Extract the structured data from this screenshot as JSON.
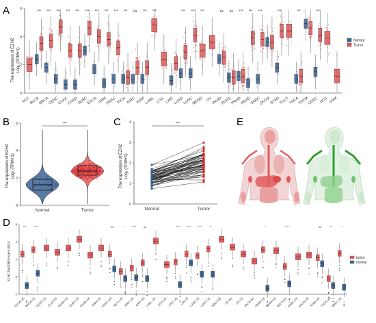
{
  "figure": {
    "panel_labels": [
      "A",
      "B",
      "C",
      "D",
      "E"
    ]
  },
  "colors": {
    "normal": "#3c6394",
    "tumor": "#e35b5b",
    "tumor_dark": "#d62728",
    "organ_tumor": "#e8a0a0",
    "organ_normal": "#8fd18f"
  },
  "chart_data": [
    {
      "panel": "A",
      "type": "box",
      "ylabel_line1": "The expression of EZH2",
      "ylabel_line2": "Log₂ (TPM+1)",
      "ylim": [
        0,
        6
      ],
      "yticks": [
        0,
        2,
        4,
        6
      ],
      "legend": {
        "title": "",
        "entries": [
          "Normal",
          "Tumor"
        ],
        "placement": "right"
      },
      "categories": [
        "ACC",
        "BLCA",
        "BRCA",
        "CESC",
        "CHOL",
        "COAD",
        "DLBC",
        "ESCA",
        "GBM",
        "HNSC",
        "KICH",
        "KIRC",
        "KIRP",
        "LAML",
        "LGG",
        "LIHC",
        "LUAD",
        "LUSC",
        "MESO",
        "OV",
        "PAAD",
        "PCPG",
        "PRAD",
        "READ",
        "SARC",
        "SKCM",
        "STAD",
        "TGCT",
        "THCA",
        "THYM",
        "UCEC",
        "UCS",
        "UVM"
      ],
      "significance": [
        "",
        "***",
        "***",
        "***",
        "***",
        "***",
        "***",
        "***",
        "***",
        "***",
        "***",
        "ns",
        "***",
        "***",
        "",
        "",
        "***",
        "***",
        "***",
        "",
        "ns",
        "ns",
        "***",
        "***",
        "***",
        "",
        "***",
        "",
        "***",
        "",
        "***",
        "",
        ""
      ],
      "normal_median": [
        null,
        2.4,
        1.8,
        1.0,
        0.6,
        0.6,
        3.0,
        1.7,
        0.7,
        1.0,
        1.0,
        1.0,
        1.0,
        null,
        null,
        0.9,
        1.4,
        1.4,
        null,
        null,
        2.4,
        1.1,
        1.2,
        0.7,
        1.0,
        3.6,
        1.8,
        null,
        1.0,
        4.9,
        1.5,
        null,
        null
      ],
      "tumor_median": [
        2.0,
        3.5,
        3.7,
        4.7,
        3.0,
        3.0,
        4.6,
        4.0,
        3.8,
        3.2,
        1.1,
        1.8,
        1.8,
        4.8,
        2.4,
        2.1,
        2.9,
        4.1,
        3.0,
        3.6,
        2.5,
        1.1,
        1.2,
        3.9,
        3.8,
        3.6,
        4.4,
        4.4,
        1.2,
        4.6,
        4.1,
        3.9,
        1.2
      ]
    },
    {
      "panel": "B",
      "type": "violin",
      "ylabel_line1": "The expression of EZH2",
      "ylabel_line2": "Log₂ (TPM+1)",
      "categories": [
        "Normal",
        "Tumor"
      ],
      "ylim": [
        0,
        6
      ],
      "yticks": [
        0,
        2,
        4,
        6
      ],
      "median": [
        1.5,
        2.5
      ],
      "q1": [
        1.1,
        2.2
      ],
      "q3": [
        1.9,
        2.9
      ],
      "significance": "***"
    },
    {
      "panel": "C",
      "type": "paired",
      "ylabel_line1": "The expression of EZH2",
      "ylabel_line2": "Log₂ (TPM+1)",
      "categories": [
        "Normal",
        "Tumor"
      ],
      "ylim": [
        0,
        4
      ],
      "yticks": [
        0,
        1,
        2,
        3,
        4
      ],
      "significance": "***"
    },
    {
      "panel": "D",
      "type": "box",
      "ylabel": "EZH2 (log2(fpkm-uq+0.001))",
      "ylim": [
        -2,
        6
      ],
      "yticks": [
        -2,
        0,
        2,
        4,
        6
      ],
      "legend": {
        "entries": [
          "tumor",
          "normal"
        ],
        "placement": "right"
      },
      "categories": [
        "BLCA-US",
        "BRCA-US",
        "CESC-US",
        "CLLE-ES",
        "COAD-US",
        "DLBC-US",
        "ESAD-UK",
        "GBM-US",
        "HNSC-US",
        "KICH-US",
        "KIRC-US",
        "KIRP-US",
        "LAML-US",
        "LGG-US",
        "LIHC-US",
        "LIRI-JP",
        "LUAD-US",
        "LUSC-US",
        "MALY-DE",
        "OV-AU",
        "OV-US",
        "PACA-AU",
        "PEAD-US",
        "READ-US",
        "RECA-EU",
        "SARC-US",
        "SKCM-US",
        "STAD-US",
        "THCA-US",
        "UCEC-US"
      ],
      "significance": [
        "***",
        "****",
        "",
        "",
        "",
        "",
        "",
        "",
        "ns",
        "*",
        "****",
        "ns",
        "",
        "",
        "****",
        "****",
        "****",
        "**",
        "",
        "",
        "",
        "",
        "*",
        "",
        "****",
        "",
        "",
        "ns",
        "***",
        "*"
      ],
      "tumor_median": [
        2.6,
        3.1,
        3.3,
        2.8,
        3.3,
        4.3,
        2.5,
        3.3,
        2.6,
        0.6,
        1.0,
        1.6,
        4.1,
        1.4,
        1.7,
        2.6,
        2.4,
        3.2,
        4.3,
        3.4,
        2.6,
        1.8,
        3.1,
        3.0,
        1.2,
        2.3,
        2.5,
        2.2,
        -0.2,
        2.7
      ],
      "normal_median": [
        -1.0,
        0.4,
        null,
        null,
        null,
        null,
        null,
        null,
        0.9,
        -0.2,
        -0.1,
        -0.2,
        null,
        null,
        -0.9,
        1.6,
        0.3,
        0.3,
        null,
        null,
        null,
        null,
        -1.3,
        null,
        -0.8,
        null,
        null,
        1.5,
        -1.0,
        -1.2
      ]
    }
  ]
}
